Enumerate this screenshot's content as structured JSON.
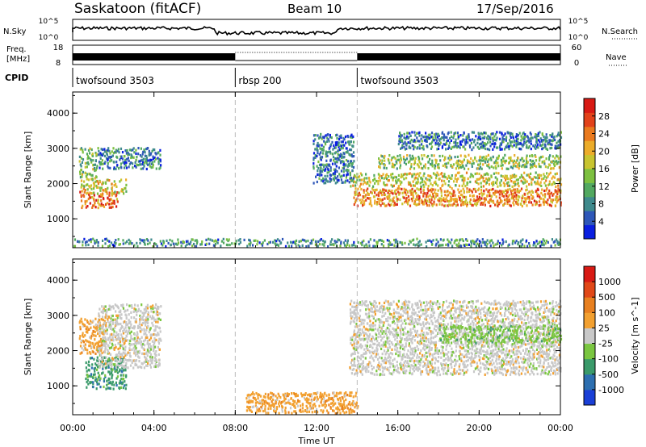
{
  "header": {
    "station": "Saskatoon (fitACF)",
    "beam": "Beam 10",
    "date": "17/Sep/2016"
  },
  "panels": {
    "nsky_label": "N.Sky",
    "nsky_ticks": [
      "10^5",
      "10^0"
    ],
    "nsearch_label": "N.Search",
    "nsearch_ticks": [
      "10^5",
      "10^0"
    ],
    "freq_label": "Freq.",
    "freq_unit": "[MHz]",
    "freq_ticks": [
      "18",
      "8"
    ],
    "nave_label": "Nave",
    "nave_ticks": [
      "60",
      "0"
    ],
    "cpid_label": "CPID",
    "cpid_segments": [
      {
        "name": "twofsound 3503",
        "start_hour": 0,
        "end_hour": 8
      },
      {
        "name": "rbsp 200",
        "start_hour": 8,
        "end_hour": 14
      },
      {
        "name": "twofsound 3503",
        "start_hour": 14,
        "end_hour": 24
      }
    ]
  },
  "chart_data": [
    {
      "type": "heatmap",
      "quantity": "power",
      "ylabel": "Slant Range [km]",
      "y_ticks": [
        1000,
        2000,
        3000,
        4000
      ],
      "ylim": [
        180,
        4600
      ],
      "xlim": [
        0,
        24
      ],
      "colorbar_label": "Power [dB]",
      "colorbar_ticks": [
        "28",
        "24",
        "20",
        "16",
        "12",
        "8",
        "4"
      ],
      "colorbar_colors": [
        "#0a1fe0",
        "#2e57b8",
        "#3f8a8c",
        "#52a860",
        "#7dc040",
        "#c8c430",
        "#ecac2a",
        "#ea7a1e",
        "#e2421a",
        "#d81a14"
      ],
      "bands": [
        {
          "start_hour": 0.3,
          "end_hour": 2.2,
          "range_low": 1300,
          "range_high": 1750,
          "level": 0.82
        },
        {
          "start_hour": 0.3,
          "end_hour": 2.6,
          "range_low": 1700,
          "range_high": 2100,
          "level": 0.6
        },
        {
          "start_hour": 0.3,
          "end_hour": 1.2,
          "range_low": 2100,
          "range_high": 3000,
          "level": 0.4
        },
        {
          "start_hour": 1.2,
          "end_hour": 4.3,
          "range_low": 2400,
          "range_high": 3000,
          "level": 0.22
        },
        {
          "start_hour": 13.8,
          "end_hour": 24,
          "range_low": 1350,
          "range_high": 1850,
          "level": 0.75
        },
        {
          "start_hour": 13.6,
          "end_hour": 24,
          "range_low": 1900,
          "range_high": 2300,
          "level": 0.55
        },
        {
          "start_hour": 15,
          "end_hour": 24,
          "range_low": 2400,
          "range_high": 2800,
          "level": 0.45
        },
        {
          "start_hour": 16,
          "end_hour": 24,
          "range_low": 2950,
          "range_high": 3450,
          "level": 0.2
        },
        {
          "start_hour": 11.8,
          "end_hour": 13.8,
          "range_low": 2000,
          "range_high": 3400,
          "level": 0.18
        },
        {
          "start_hour": 0,
          "end_hour": 24,
          "range_low": 200,
          "range_high": 420,
          "level": 0.25
        }
      ]
    },
    {
      "type": "heatmap",
      "quantity": "velocity",
      "ylabel": "Slant Range [km]",
      "y_ticks": [
        1000,
        2000,
        3000,
        4000
      ],
      "ylim": [
        180,
        4600
      ],
      "xlim": [
        0,
        24
      ],
      "colorbar_label": "Velocity [m s^-1]",
      "colorbar_ticks": [
        "1000",
        "500",
        "100",
        "25",
        "-25",
        "-100",
        "-500",
        "-1000"
      ],
      "colorbar_colors": [
        "#1a3fd6",
        "#2d6fb0",
        "#3a9a6a",
        "#7ac640",
        "#c8c8c8",
        "#f2a030",
        "#e88020",
        "#e04818",
        "#d81a14"
      ],
      "bands": [
        {
          "start_hour": 0.3,
          "end_hour": 1.6,
          "range_low": 1900,
          "range_high": 2900,
          "color_index": 5
        },
        {
          "start_hour": 0.6,
          "end_hour": 2.6,
          "range_low": 900,
          "range_high": 1800,
          "color_index": 2
        },
        {
          "start_hour": 1.2,
          "end_hour": 4.3,
          "range_low": 1500,
          "range_high": 3300,
          "color_index": 4
        },
        {
          "start_hour": 13.6,
          "end_hour": 24,
          "range_low": 1300,
          "range_high": 3400,
          "color_index": 4
        },
        {
          "start_hour": 18,
          "end_hour": 24,
          "range_low": 2200,
          "range_high": 2700,
          "color_index": 3
        },
        {
          "start_hour": 8.5,
          "end_hour": 14,
          "range_low": 200,
          "range_high": 800,
          "color_index": 5
        }
      ]
    }
  ],
  "x_axis": {
    "label": "Time UT",
    "ticks": [
      "00:00",
      "04:00",
      "08:00",
      "12:00",
      "16:00",
      "20:00",
      "00:00"
    ],
    "tick_hours": [
      0,
      4,
      8,
      12,
      16,
      20,
      24
    ]
  }
}
